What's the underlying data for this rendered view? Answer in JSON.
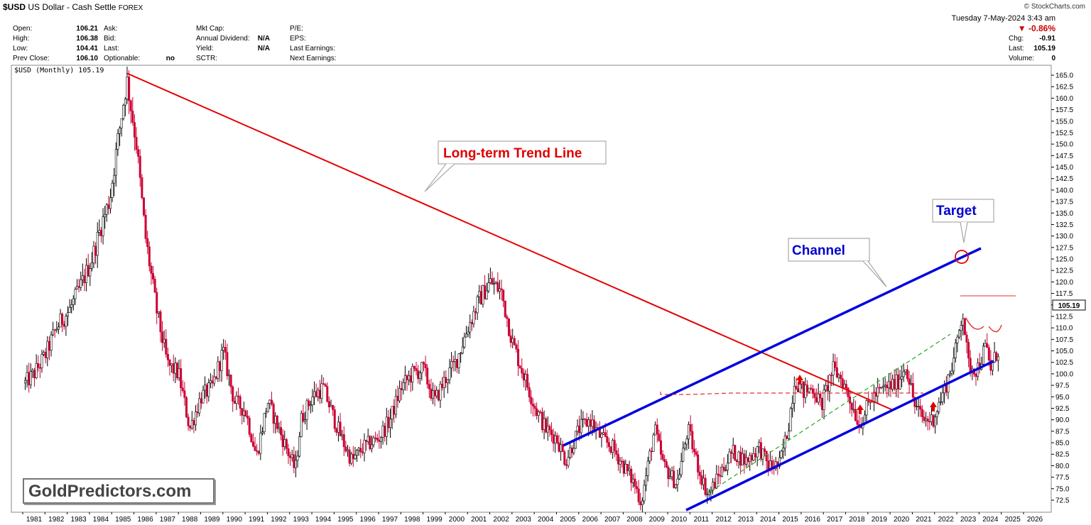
{
  "header": {
    "symbol": "$USD",
    "name": "US Dollar - Cash Settle",
    "exchange": "FOREX",
    "brand": "© StockCharts.com",
    "date": "Tuesday  7-May-2024  3:43 am",
    "col1": [
      {
        "label": "Open:",
        "value": "106.21"
      },
      {
        "label": "High:",
        "value": "106.38"
      },
      {
        "label": "Low:",
        "value": "104.41"
      },
      {
        "label": "Prev Close:",
        "value": "106.10"
      }
    ],
    "col2": [
      {
        "label": "Ask:",
        "value": ""
      },
      {
        "label": "Bid:",
        "value": ""
      },
      {
        "label": "Last:",
        "value": ""
      },
      {
        "label": "Optionable:",
        "value": "no"
      }
    ],
    "col3": [
      {
        "label": "Mkt Cap:",
        "value": ""
      },
      {
        "label": "Annual Dividend:",
        "value": "N/A"
      },
      {
        "label": "Yield:",
        "value": "N/A"
      },
      {
        "label": "SCTR:",
        "value": ""
      }
    ],
    "col4": [
      {
        "label": "P/E:",
        "value": ""
      },
      {
        "label": "EPS:",
        "value": ""
      },
      {
        "label": "Last Earnings:",
        "value": ""
      },
      {
        "label": "Next Earnings:",
        "value": ""
      }
    ],
    "change_pct": "▼ -0.86%",
    "right": [
      {
        "label": "Chg:",
        "value": "-0.91"
      },
      {
        "label": "Last:",
        "value": "105.19"
      },
      {
        "label": "Volume:",
        "value": "0"
      }
    ]
  },
  "chart_data": {
    "type": "candlestick",
    "legend": "$USD (Monthly) 105.19",
    "last_price_label": "105.19",
    "y_min": 70,
    "y_max": 166,
    "y_ticks": [
      165.0,
      162.5,
      160.0,
      157.5,
      155.0,
      152.5,
      150.0,
      147.5,
      145.0,
      142.5,
      140.0,
      137.5,
      135.0,
      132.5,
      130.0,
      127.5,
      125.0,
      122.5,
      120.0,
      117.5,
      115.0,
      112.5,
      110.0,
      107.5,
      105.0,
      102.5,
      100.0,
      97.5,
      95.0,
      92.5,
      90.0,
      87.5,
      85.0,
      82.5,
      80.0,
      77.5,
      75.0,
      72.5
    ],
    "x_ticks": [
      "1981",
      "1982",
      "1983",
      "1984",
      "1985",
      "1986",
      "1987",
      "1988",
      "1989",
      "1990",
      "1991",
      "1992",
      "1993",
      "1994",
      "1995",
      "1996",
      "1997",
      "1998",
      "1999",
      "2000",
      "2001",
      "2002",
      "2003",
      "2004",
      "2005",
      "2006",
      "2007",
      "2008",
      "2009",
      "2010",
      "2011",
      "2012",
      "2013",
      "2014",
      "2015",
      "2016",
      "2017",
      "2018",
      "2019",
      "2020",
      "2021",
      "2022",
      "2023",
      "2024",
      "2025",
      "2026"
    ],
    "series_anchors": [
      [
        1980.6,
        98
      ],
      [
        1981.0,
        100
      ],
      [
        1981.5,
        104
      ],
      [
        1982.0,
        110
      ],
      [
        1982.6,
        114
      ],
      [
        1983.0,
        118
      ],
      [
        1983.6,
        125
      ],
      [
        1984.0,
        132
      ],
      [
        1984.4,
        138
      ],
      [
        1984.8,
        152
      ],
      [
        1985.17,
        164
      ],
      [
        1985.6,
        150
      ],
      [
        1986.0,
        130
      ],
      [
        1986.5,
        114
      ],
      [
        1987.0,
        102
      ],
      [
        1987.5,
        100
      ],
      [
        1988.0,
        88
      ],
      [
        1988.5,
        95
      ],
      [
        1989.0,
        97
      ],
      [
        1989.5,
        105
      ],
      [
        1990.0,
        94
      ],
      [
        1990.5,
        92
      ],
      [
        1991.0,
        82
      ],
      [
        1991.5,
        94
      ],
      [
        1992.0,
        88
      ],
      [
        1992.5,
        82
      ],
      [
        1992.75,
        79
      ],
      [
        1993.0,
        90
      ],
      [
        1993.5,
        95
      ],
      [
        1994.0,
        97
      ],
      [
        1994.5,
        90
      ],
      [
        1995.0,
        84
      ],
      [
        1995.3,
        81
      ],
      [
        1995.8,
        84
      ],
      [
        1996.5,
        86
      ],
      [
        1997.0,
        90
      ],
      [
        1997.5,
        97
      ],
      [
        1998.0,
        100
      ],
      [
        1998.5,
        101
      ],
      [
        1999.0,
        94
      ],
      [
        1999.5,
        99
      ],
      [
        2000.0,
        103
      ],
      [
        2000.5,
        110
      ],
      [
        2001.0,
        116
      ],
      [
        2001.5,
        120
      ],
      [
        2002.0,
        118
      ],
      [
        2002.5,
        107
      ],
      [
        2003.0,
        100
      ],
      [
        2003.5,
        93
      ],
      [
        2004.0,
        88
      ],
      [
        2004.5,
        86
      ],
      [
        2004.9,
        81
      ],
      [
        2005.5,
        88
      ],
      [
        2006.0,
        90
      ],
      [
        2006.5,
        86
      ],
      [
        2007.0,
        84
      ],
      [
        2007.5,
        80
      ],
      [
        2008.0,
        76
      ],
      [
        2008.3,
        72
      ],
      [
        2008.9,
        88
      ],
      [
        2009.3,
        80
      ],
      [
        2009.9,
        76
      ],
      [
        2010.4,
        88
      ],
      [
        2010.9,
        79
      ],
      [
        2011.3,
        73.5
      ],
      [
        2011.8,
        78
      ],
      [
        2012.4,
        83
      ],
      [
        2013.0,
        81
      ],
      [
        2013.6,
        84
      ],
      [
        2014.0,
        80
      ],
      [
        2014.5,
        80
      ],
      [
        2014.9,
        88
      ],
      [
        2015.2,
        99
      ],
      [
        2015.6,
        96
      ],
      [
        2016.0,
        97
      ],
      [
        2016.4,
        93
      ],
      [
        2016.9,
        101
      ],
      [
        2017.3,
        99
      ],
      [
        2017.8,
        93
      ],
      [
        2018.1,
        89
      ],
      [
        2018.7,
        95
      ],
      [
        2019.3,
        97
      ],
      [
        2019.8,
        98
      ],
      [
        2020.2,
        102
      ],
      [
        2020.6,
        93
      ],
      [
        2021.0,
        90
      ],
      [
        2021.4,
        90
      ],
      [
        2021.9,
        96
      ],
      [
        2022.4,
        104
      ],
      [
        2022.75,
        114
      ],
      [
        2023.0,
        102
      ],
      [
        2023.4,
        101
      ],
      [
        2023.8,
        106
      ],
      [
        2024.0,
        101
      ],
      [
        2024.35,
        105.19
      ]
    ],
    "annotations": [
      {
        "text": "Long-term Trend Line",
        "color": "#e00000"
      },
      {
        "text": "Channel",
        "color": "#0000cc"
      },
      {
        "text": "Target",
        "color": "#0000cc"
      }
    ],
    "watermark": "GoldPredictors.com"
  }
}
